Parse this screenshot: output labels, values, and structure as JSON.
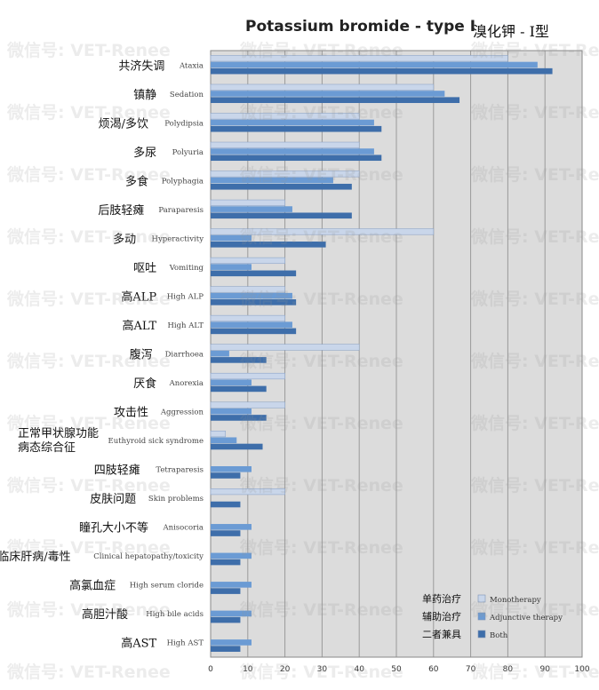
{
  "title": "Potassium bromide - type I",
  "title_cn": "溴化钾 - Ⅰ型",
  "watermark": "微信号: VET-Renee",
  "legend": [
    {
      "cn": "单药治疗",
      "en": "Monotherapy",
      "color": "#c9d6ea"
    },
    {
      "cn": "辅助治疗",
      "en": "Adjunctive therapy",
      "color": "#6b9bd4"
    },
    {
      "cn": "二者兼具",
      "en": "Both",
      "color": "#3e6eaa"
    }
  ],
  "chart_data": {
    "type": "bar",
    "orientation": "horizontal",
    "xlim": [
      0,
      100
    ],
    "xticks": [
      "0",
      "10",
      "20",
      "30",
      "40",
      "50",
      "60",
      "70",
      "80",
      "90",
      "100"
    ],
    "grid": true,
    "legend_position": "bottom-right",
    "categories": [
      {
        "cn": "共济失调",
        "en": "Ataxia"
      },
      {
        "cn": "镇静",
        "en": "Sedation"
      },
      {
        "cn": "烦渴/多饮",
        "en": "Polydipsia"
      },
      {
        "cn": "多尿",
        "en": "Polyuria"
      },
      {
        "cn": "多食",
        "en": "Polyphagia"
      },
      {
        "cn": "后肢轻瘫",
        "en": "Paraparesis"
      },
      {
        "cn": "多动",
        "en": "Hyperactivity"
      },
      {
        "cn": "呕吐",
        "en": "Vomiting"
      },
      {
        "cn": "高ALP",
        "en": "High ALP"
      },
      {
        "cn": "高ALT",
        "en": "High ALT"
      },
      {
        "cn": "腹泻",
        "en": "Diarrhoea"
      },
      {
        "cn": "厌食",
        "en": "Anorexia"
      },
      {
        "cn": "攻击性",
        "en": "Aggression"
      },
      {
        "cn": "正常甲状腺功能\n病态综合征",
        "en": "Euthyroid sick syndrome"
      },
      {
        "cn": "四肢轻瘫",
        "en": "Tetraparesis"
      },
      {
        "cn": "皮肤问题",
        "en": "Skin problems"
      },
      {
        "cn": "瞳孔大小不等",
        "en": "Anisocoria"
      },
      {
        "cn": "临床肝病/毒性",
        "en": "Clinical hepatopathy/toxicity"
      },
      {
        "cn": "高氯血症",
        "en": "High serum cloride"
      },
      {
        "cn": "高胆汁酸",
        "en": "High bile acids"
      },
      {
        "cn": "高AST",
        "en": "High AST"
      }
    ],
    "series": [
      {
        "name": "Monotherapy",
        "values": [
          80,
          60,
          40,
          40,
          40,
          20,
          60,
          20,
          20,
          20,
          40,
          20,
          20,
          4,
          0,
          20,
          0,
          0,
          0,
          0,
          0
        ]
      },
      {
        "name": "Adjunctive therapy",
        "values": [
          88,
          63,
          44,
          44,
          33,
          22,
          11,
          11,
          22,
          22,
          5,
          11,
          11,
          7,
          11,
          0,
          11,
          11,
          11,
          11,
          11
        ]
      },
      {
        "name": "Both",
        "values": [
          92,
          67,
          46,
          46,
          38,
          38,
          31,
          23,
          23,
          23,
          15,
          15,
          15,
          14,
          8,
          8,
          8,
          8,
          8,
          8,
          8
        ]
      }
    ]
  }
}
